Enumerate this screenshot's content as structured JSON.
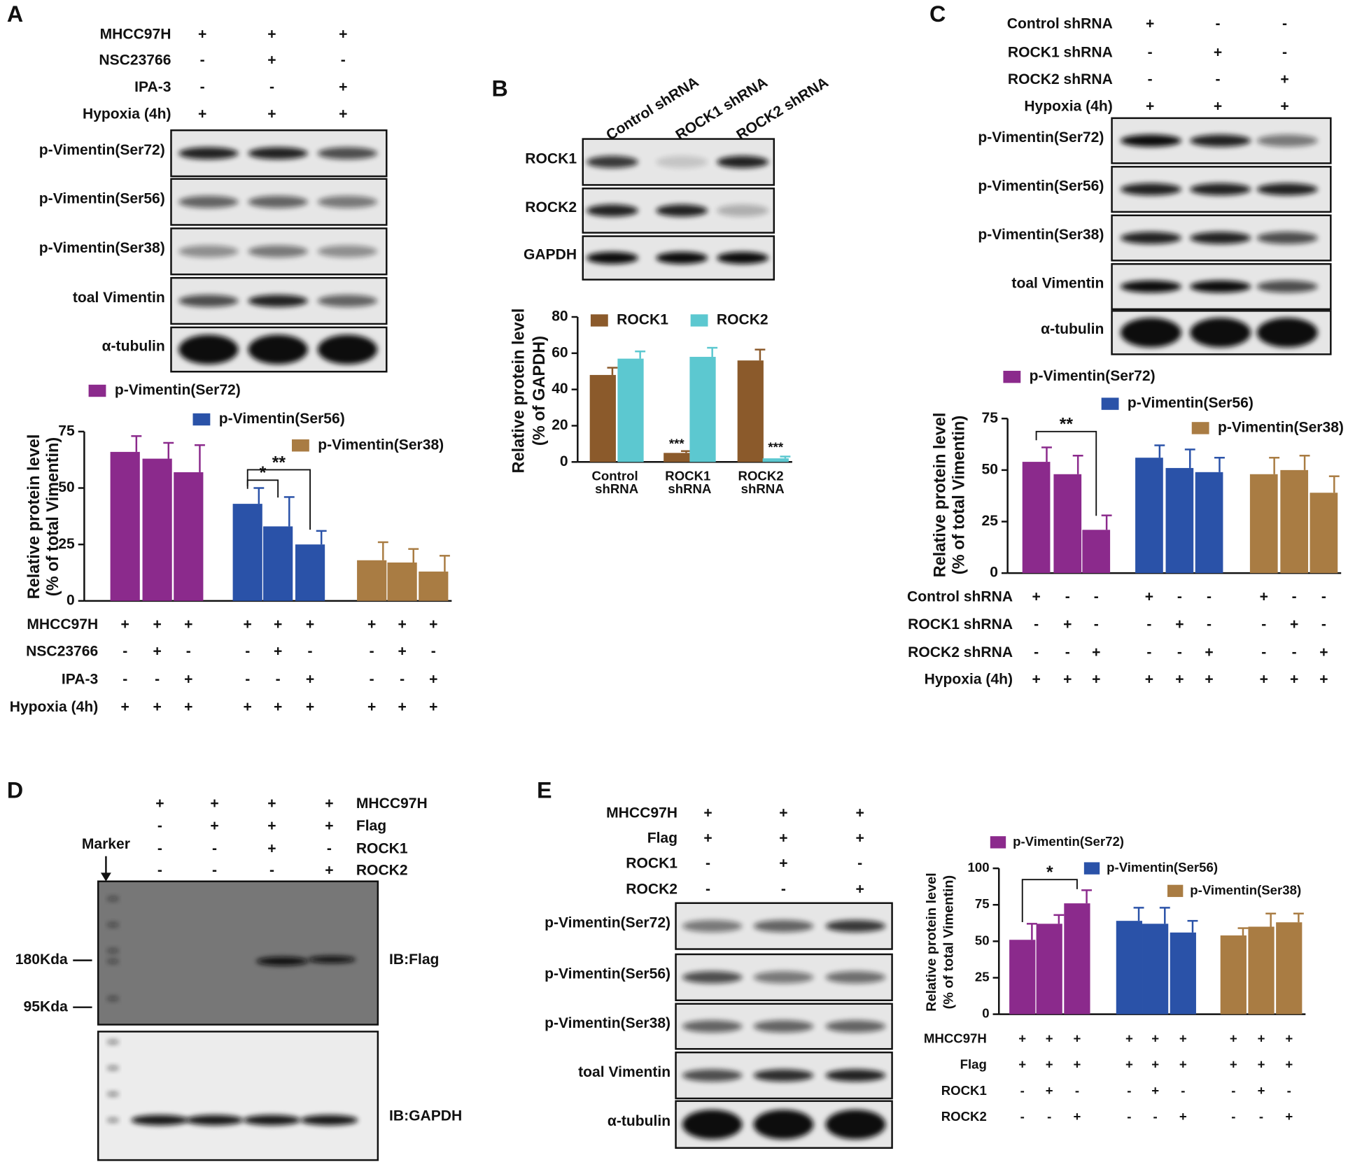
{
  "panel_labels": [
    "A",
    "B",
    "C",
    "D",
    "E"
  ],
  "blots": [
    {
      "rows": [
        {
          "label": "MHCC97H",
          "signs": [
            "+",
            "+",
            "+"
          ]
        },
        {
          "label": "NSC23766",
          "signs": [
            "-",
            "+",
            "-"
          ]
        },
        {
          "label": "IPA-3",
          "signs": [
            "-",
            "-",
            "+"
          ]
        },
        {
          "label": "Hypoxia (4h)",
          "signs": [
            "+",
            "+",
            "+"
          ]
        }
      ],
      "bands": [
        "p-Vimentin(Ser72)",
        "p-Vimentin(Ser56)",
        "p-Vimentin(Ser38)",
        "toal Vimentin",
        "α-tubulin"
      ]
    },
    {
      "lanes": [
        "Control shRNA",
        "ROCK1 shRNA",
        "ROCK2 shRNA"
      ],
      "bands": [
        "ROCK1",
        "ROCK2",
        "GAPDH"
      ]
    },
    {
      "rows": [
        {
          "label": "Control shRNA",
          "signs": [
            "+",
            "-",
            "-"
          ]
        },
        {
          "label": "ROCK1 shRNA",
          "signs": [
            "-",
            "+",
            "-"
          ]
        },
        {
          "label": "ROCK2 shRNA",
          "signs": [
            "-",
            "-",
            "+"
          ]
        },
        {
          "label": "Hypoxia (4h)",
          "signs": [
            "+",
            "+",
            "+"
          ]
        }
      ],
      "bands": [
        "p-Vimentin(Ser72)",
        "p-Vimentin(Ser56)",
        "p-Vimentin(Ser38)",
        "toal Vimentin",
        "α-tubulin"
      ]
    },
    {
      "rows": [
        {
          "label": "MHCC97H",
          "signs": [
            "+",
            "+",
            "+",
            "+"
          ]
        },
        {
          "label": "Flag",
          "signs": [
            "-",
            "+",
            "+",
            "+"
          ]
        },
        {
          "label": "ROCK1",
          "signs": [
            "-",
            "-",
            "+",
            "-"
          ]
        },
        {
          "label": "ROCK2",
          "signs": [
            "-",
            "-",
            "-",
            "+"
          ]
        }
      ],
      "marker": "Marker",
      "sizes": [
        "180Kda",
        "95Kda"
      ],
      "probes": [
        "IB:Flag",
        "IB:GAPDH"
      ]
    },
    {
      "rows": [
        {
          "label": "MHCC97H",
          "signs": [
            "+",
            "+",
            "+"
          ]
        },
        {
          "label": "Flag",
          "signs": [
            "+",
            "+",
            "+"
          ]
        },
        {
          "label": "ROCK1",
          "signs": [
            "-",
            "+",
            "-"
          ]
        },
        {
          "label": "ROCK2",
          "signs": [
            "-",
            "-",
            "+"
          ]
        }
      ],
      "bands": [
        "p-Vimentin(Ser72)",
        "p-Vimentin(Ser56)",
        "p-Vimentin(Ser38)",
        "toal Vimentin",
        "α-tubulin"
      ]
    }
  ],
  "chart_data": [
    {
      "type": "bar",
      "ylabel": [
        "Relative protein level",
        "(% of total Vimentin)"
      ],
      "ylim": [
        0,
        75
      ],
      "yticks": [
        0,
        25,
        50,
        75
      ],
      "series": [
        {
          "name": "p-Vimentin(Ser72)",
          "color": "#8b2a8c",
          "values": [
            66,
            63,
            57
          ],
          "errors": [
            7,
            7,
            12
          ]
        },
        {
          "name": "p-Vimentin(Ser56)",
          "color": "#2a52a8",
          "values": [
            43,
            33,
            25
          ],
          "errors": [
            7,
            13,
            6
          ]
        },
        {
          "name": "p-Vimentin(Ser38)",
          "color": "#a97c43",
          "values": [
            18,
            17,
            13
          ],
          "errors": [
            8,
            6,
            7
          ]
        }
      ],
      "annotations": [
        "*",
        "**"
      ],
      "conditions": [
        {
          "label": "MHCC97H",
          "signs": [
            "+",
            "+",
            "+",
            "+",
            "+",
            "+",
            "+",
            "+",
            "+"
          ]
        },
        {
          "label": "NSC23766",
          "signs": [
            "-",
            "+",
            "-",
            "-",
            "+",
            "-",
            "-",
            "+",
            "-"
          ]
        },
        {
          "label": "IPA-3",
          "signs": [
            "-",
            "-",
            "+",
            "-",
            "-",
            "+",
            "-",
            "-",
            "+"
          ]
        },
        {
          "label": "Hypoxia (4h)",
          "signs": [
            "+",
            "+",
            "+",
            "+",
            "+",
            "+",
            "+",
            "+",
            "+"
          ]
        }
      ]
    },
    {
      "type": "bar",
      "ylabel": [
        "Relative protein level",
        "(% of GAPDH)"
      ],
      "ylim": [
        0,
        80
      ],
      "yticks": [
        0,
        20,
        40,
        60,
        80
      ],
      "categories": [
        "Control shRNA",
        "ROCK1 shRNA",
        "ROCK2 shRNA"
      ],
      "series": [
        {
          "name": "ROCK1",
          "color": "#8b5a2b",
          "values": [
            48,
            5,
            56
          ],
          "errors": [
            4,
            1,
            6
          ]
        },
        {
          "name": "ROCK2",
          "color": "#5cc8d0",
          "values": [
            57,
            58,
            2
          ],
          "errors": [
            4,
            5,
            1
          ]
        }
      ],
      "annotations": [
        "***",
        "***"
      ]
    },
    {
      "type": "bar",
      "ylabel": [
        "Relative protein level",
        "(% of total Vimentin)"
      ],
      "ylim": [
        0,
        75
      ],
      "yticks": [
        0,
        25,
        50,
        75
      ],
      "series": [
        {
          "name": "p-Vimentin(Ser72)",
          "color": "#8b2a8c",
          "values": [
            54,
            48,
            21
          ],
          "errors": [
            7,
            9,
            7
          ]
        },
        {
          "name": "p-Vimentin(Ser56)",
          "color": "#2a52a8",
          "values": [
            56,
            51,
            49
          ],
          "errors": [
            6,
            9,
            7
          ]
        },
        {
          "name": "p-Vimentin(Ser38)",
          "color": "#a97c43",
          "values": [
            48,
            50,
            39
          ],
          "errors": [
            8,
            7,
            8
          ]
        }
      ],
      "annotations": [
        "**"
      ],
      "conditions": [
        {
          "label": "Control shRNA",
          "signs": [
            "+",
            "-",
            "-",
            "+",
            "-",
            "-",
            "+",
            "-",
            "-"
          ]
        },
        {
          "label": "ROCK1 shRNA",
          "signs": [
            "-",
            "+",
            "-",
            "-",
            "+",
            "-",
            "-",
            "+",
            "-"
          ]
        },
        {
          "label": "ROCK2 shRNA",
          "signs": [
            "-",
            "-",
            "+",
            "-",
            "-",
            "+",
            "-",
            "-",
            "+"
          ]
        },
        {
          "label": "Hypoxia (4h)",
          "signs": [
            "+",
            "+",
            "+",
            "+",
            "+",
            "+",
            "+",
            "+",
            "+"
          ]
        }
      ]
    },
    {
      "type": "bar",
      "ylabel": [
        "Relative protein level",
        "(% of total Vimentin)"
      ],
      "ylim": [
        0,
        100
      ],
      "yticks": [
        0,
        25,
        50,
        75,
        100
      ],
      "series": [
        {
          "name": "p-Vimentin(Ser72)",
          "color": "#8b2a8c",
          "values": [
            51,
            62,
            76
          ],
          "errors": [
            11,
            6,
            9
          ]
        },
        {
          "name": "p-Vimentin(Ser56)",
          "color": "#2a52a8",
          "values": [
            64,
            62,
            56
          ],
          "errors": [
            9,
            11,
            8
          ]
        },
        {
          "name": "p-Vimentin(Ser38)",
          "color": "#a97c43",
          "values": [
            54,
            60,
            63
          ],
          "errors": [
            5,
            9,
            6
          ]
        }
      ],
      "annotations": [
        "*"
      ],
      "conditions": [
        {
          "label": "MHCC97H",
          "signs": [
            "+",
            "+",
            "+",
            "+",
            "+",
            "+",
            "+",
            "+",
            "+"
          ]
        },
        {
          "label": "Flag",
          "signs": [
            "+",
            "+",
            "+",
            "+",
            "+",
            "+",
            "+",
            "+",
            "+"
          ]
        },
        {
          "label": "ROCK1",
          "signs": [
            "-",
            "+",
            "-",
            "-",
            "+",
            "-",
            "-",
            "+",
            "-"
          ]
        },
        {
          "label": "ROCK2",
          "signs": [
            "-",
            "-",
            "+",
            "-",
            "-",
            "+",
            "-",
            "-",
            "+"
          ]
        }
      ]
    }
  ]
}
